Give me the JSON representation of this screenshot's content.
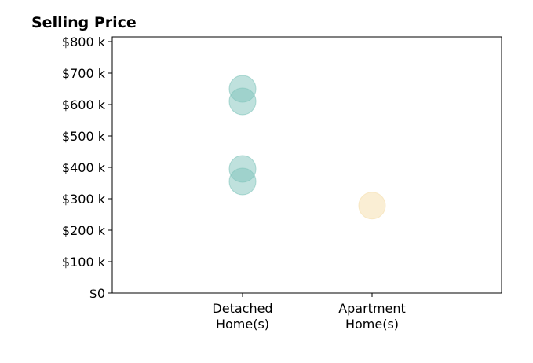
{
  "chart_data": {
    "type": "scatter",
    "title": "Selling Price",
    "xlabel": "",
    "ylabel": "",
    "categories": [
      "Detached\nHome(s)",
      "Apartment\nHome(s)"
    ],
    "ylim": [
      0,
      800
    ],
    "yticks": [
      {
        "value": 0,
        "label": "$0"
      },
      {
        "value": 100,
        "label": "$100 k"
      },
      {
        "value": 200,
        "label": "$200 k"
      },
      {
        "value": 300,
        "label": "$300 k"
      },
      {
        "value": 400,
        "label": "$400 k"
      },
      {
        "value": 500,
        "label": "$500 k"
      },
      {
        "value": 600,
        "label": "$600 k"
      },
      {
        "value": 700,
        "label": "$700 k"
      },
      {
        "value": 800,
        "label": "$800 k"
      }
    ],
    "grid": false,
    "series": [
      {
        "category": "Detached\nHome(s)",
        "color": "#7fc4bb",
        "values": [
          650,
          610,
          395,
          355
        ]
      },
      {
        "category": "Apartment\nHome(s)",
        "color": "#f5deaa",
        "values": [
          278
        ]
      }
    ]
  }
}
